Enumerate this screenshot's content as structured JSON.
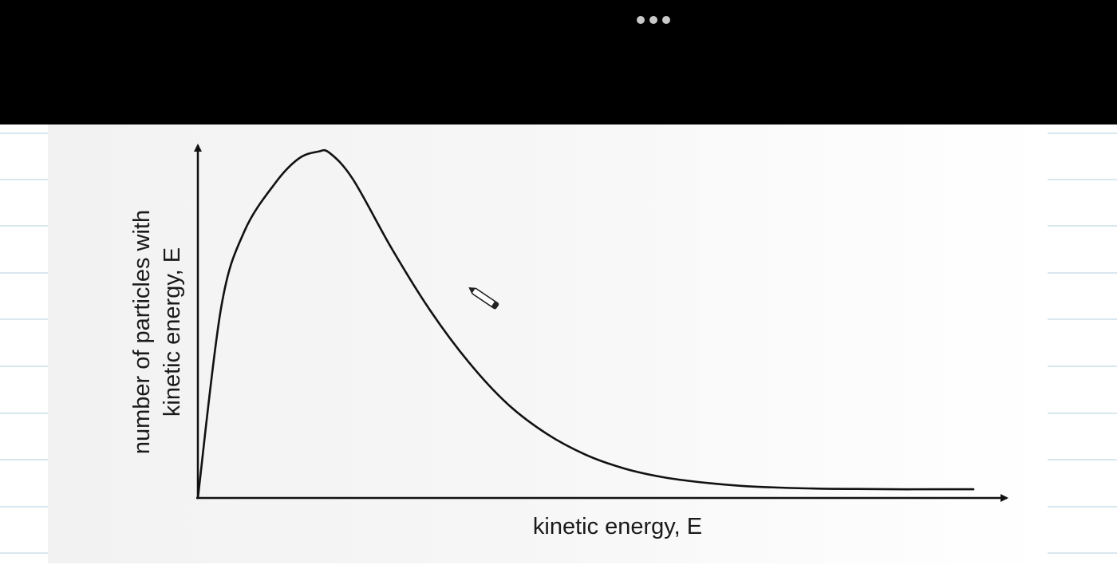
{
  "window": {
    "more_menu_icon": "more-dots-icon",
    "pen_cursor_icon": "pen-cursor-icon"
  },
  "chart_data": {
    "type": "line",
    "title": "",
    "xlabel": "kinetic energy, E",
    "ylabel_line1": "number of particles with",
    "ylabel_line2": "kinetic energy, E",
    "x_ticks": [],
    "y_ticks": [],
    "grid": false,
    "legend": "none",
    "xlim": [
      0,
      10
    ],
    "ylim": [
      0,
      10
    ],
    "series": [
      {
        "line_color": "#111111",
        "x": [
          0,
          0.3,
          0.6,
          1.0,
          1.3,
          1.55,
          1.7,
          2.0,
          2.5,
          3.0,
          3.5,
          4.0,
          4.5,
          5.0,
          5.5,
          6.0,
          6.5,
          7.0,
          7.5,
          8.0,
          8.5,
          9.0,
          9.5,
          10.0
        ],
        "y": [
          0,
          5.5,
          7.7,
          9.1,
          9.8,
          10.0,
          9.96,
          9.2,
          7.2,
          5.4,
          3.9,
          2.7,
          1.85,
          1.25,
          0.85,
          0.6,
          0.45,
          0.35,
          0.3,
          0.27,
          0.26,
          0.25,
          0.25,
          0.25
        ]
      }
    ]
  }
}
